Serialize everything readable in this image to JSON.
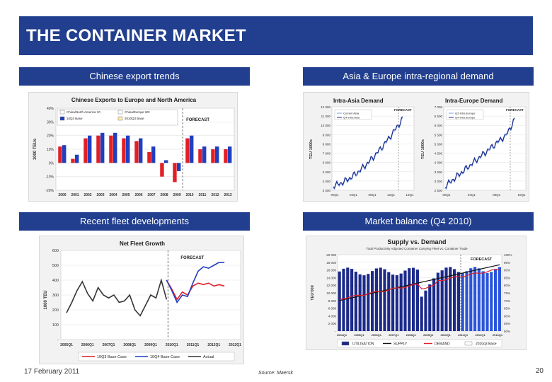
{
  "slide": {
    "title": "THE CONTAINER MARKET",
    "footer_date": "17 February 2011",
    "source": "Source: Maersk",
    "page_number": "20"
  },
  "sections": {
    "chinese_exports": "Chinese export trends",
    "asia_europe": "Asia & Europe intra-regional demand",
    "fleet": "Recent fleet developments",
    "balance": "Market balance (Q4 2010)"
  },
  "colors": {
    "header_bg": "#223f8f",
    "red": "#e21f26",
    "blue": "#1f3fbf",
    "dark_blue": "#1c2a8a",
    "gray_line": "#333333"
  },
  "chart_data": [
    {
      "type": "bar",
      "title": "Chinese Exports to Europe and North America",
      "ylabel": "1000 TEUs",
      "annotation": "FORECAST",
      "categories": [
        "2000",
        "2001",
        "2002",
        "2003",
        "2004",
        "2005",
        "2006",
        "2007",
        "2008",
        "2009",
        "2010",
        "2011",
        "2012",
        "2013"
      ],
      "yticks": [
        "40%",
        "30%",
        "20%",
        "10%",
        "0%",
        "-10%",
        "-20%"
      ],
      "ylim": [
        -20,
        40
      ],
      "legend": [
        "China/North America 10",
        "China/Europe W3",
        "10Q3 Base",
        "2010Q3 Base"
      ],
      "series": [
        {
          "name": "China/North America 10",
          "values": [
            12,
            3,
            18,
            20,
            20,
            18,
            16,
            8,
            -10,
            -14,
            18,
            10,
            10,
            10
          ]
        },
        {
          "name": "China/Europe W3",
          "values": [
            13,
            6,
            20,
            22,
            22,
            20,
            18,
            12,
            2,
            -6,
            20,
            12,
            12,
            12
          ]
        }
      ]
    },
    {
      "type": "line",
      "title": "Intra-Asia Demand",
      "ylabel": "TEU 1000s",
      "annotation": "FORECAST",
      "xticks": [
        "00Q1",
        "04Q1",
        "08Q1",
        "12Q1",
        "13Q1"
      ],
      "yticks": [
        "12 000",
        "11 000",
        "10 000",
        "9 000",
        "8 000",
        "7 000",
        "6 000",
        "5 000",
        "4 000",
        "3 000"
      ],
      "ylim": [
        3000,
        12000
      ],
      "legend": [
        "Current Asia",
        "Q4 Intra Asia"
      ]
    },
    {
      "type": "line",
      "title": "Intra-Europe Demand",
      "ylabel": "TEU 1000s",
      "annotation": "FORECAST",
      "xticks": [
        "00Q1",
        "04Q1",
        "08Q1",
        "10Q1"
      ],
      "yticks": [
        "7 000",
        "6 500",
        "6 000",
        "5 500",
        "5 000",
        "4 500",
        "4 000",
        "3 500",
        "3 000",
        "2 500"
      ],
      "ylim": [
        2500,
        7000
      ],
      "legend": [
        "Q3 Intra Europe",
        "Q4 Intra Europe"
      ]
    },
    {
      "type": "line",
      "title": "Net Fleet Growth",
      "ylabel": "1000 TEU",
      "annotation": "FORECAST",
      "yticks": [
        "600",
        "500",
        "400",
        "300",
        "200",
        "100",
        "-"
      ],
      "ylim": [
        0,
        600
      ],
      "xticks": [
        "2005Q1",
        "2006Q1",
        "2007Q1",
        "2008Q1",
        "2009Q1",
        "2010Q1",
        "2011Q1",
        "2012Q1",
        "2013Q1"
      ],
      "legend": [
        "10Q3 Base Case",
        "10Q4 Base Case",
        "Actual"
      ],
      "series": [
        {
          "name": "Actual",
          "values": [
            180,
            250,
            330,
            390,
            310,
            260,
            350,
            300,
            280,
            300,
            250,
            260,
            300,
            200,
            160,
            230,
            300,
            280,
            400,
            270
          ]
        },
        {
          "name": "10Q3 Base Case",
          "values": [
            400,
            340,
            270,
            320,
            300,
            360,
            380,
            370,
            380,
            360,
            370,
            360
          ]
        },
        {
          "name": "10Q4 Base Case",
          "values": [
            400,
            330,
            250,
            300,
            290,
            380,
            460,
            490,
            480,
            500,
            520,
            520
          ]
        }
      ]
    },
    {
      "type": "bar",
      "title": "Supply vs. Demand",
      "subtitle": "Total Productivity Adjusted Container Carrying Fleet vs. Container Trade",
      "ylabel": "TEU'000",
      "annotation": "FORECAST",
      "yticks": [
        "20 000",
        "18 000",
        "16 000",
        "14 000",
        "12 000",
        "10 000",
        "8 000",
        "6 000",
        "4 000",
        "2 000",
        "-"
      ],
      "y2ticks": [
        "100%",
        "95%",
        "90%",
        "85%",
        "80%",
        "75%",
        "70%",
        "65%",
        "60%",
        "55%",
        "50%"
      ],
      "xticks": [
        "2004Q1",
        "2005Q1",
        "2006Q1",
        "2007Q1",
        "2008Q1",
        "2009Q1",
        "2010Q1",
        "2011Q1",
        "2012Q1",
        "2013Q1"
      ],
      "legend": [
        "UTILISATION",
        "SUPPLY",
        "DEMAND",
        "2010q3 Base"
      ]
    }
  ]
}
